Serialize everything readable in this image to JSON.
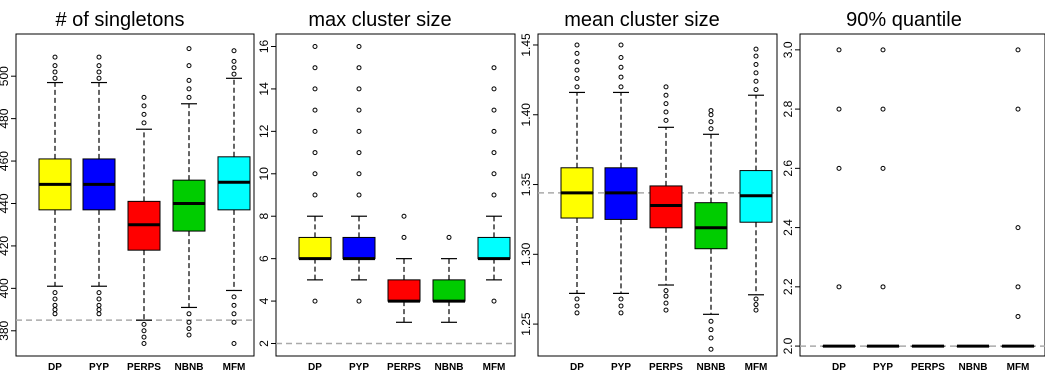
{
  "chart_data": [
    {
      "type": "boxplot",
      "title": "# of singletons",
      "categories": [
        "DP",
        "PYP",
        "PERPS",
        "NBNB",
        "MFM"
      ],
      "colors": [
        "#ffff00",
        "#0000ff",
        "#ff0000",
        "#00cc00",
        "#00ffff"
      ],
      "ylim": [
        370,
        518
      ],
      "yticks": [
        "380",
        "400",
        "420",
        "440",
        "460",
        "480",
        "500"
      ],
      "reference_line": 385,
      "boxes": [
        {
          "whisker_low": 401,
          "q1": 437,
          "median": 449,
          "q3": 461,
          "whisker_high": 497,
          "outliers": [
            398,
            395,
            392,
            390,
            388,
            499,
            502,
            505,
            509
          ]
        },
        {
          "whisker_low": 401,
          "q1": 437,
          "median": 449,
          "q3": 461,
          "whisker_high": 497,
          "outliers": [
            398,
            395,
            392,
            390,
            388,
            499,
            502,
            505,
            509
          ]
        },
        {
          "whisker_low": 385,
          "q1": 418,
          "median": 430,
          "q3": 441,
          "whisker_high": 475,
          "outliers": [
            383,
            380,
            377,
            374,
            478,
            482,
            486,
            490
          ]
        },
        {
          "whisker_low": 391,
          "q1": 427,
          "median": 440,
          "q3": 451,
          "whisker_high": 487,
          "outliers": [
            388,
            384,
            381,
            378,
            490,
            494,
            498,
            505,
            513
          ]
        },
        {
          "whisker_low": 399,
          "q1": 437,
          "median": 450,
          "q3": 462,
          "whisker_high": 499,
          "outliers": [
            396,
            392,
            388,
            384,
            374,
            501,
            504,
            507,
            512
          ]
        }
      ]
    },
    {
      "type": "boxplot",
      "title": "max cluster size",
      "categories": [
        "DP",
        "PYP",
        "PERPS",
        "NBNB",
        "MFM"
      ],
      "colors": [
        "#ffff00",
        "#0000ff",
        "#ff0000",
        "#00cc00",
        "#00ffff"
      ],
      "ylim": [
        1.6,
        16.4
      ],
      "yticks": [
        "2",
        "4",
        "6",
        "8",
        "10",
        "12",
        "14",
        "16"
      ],
      "reference_line": 2,
      "boxes": [
        {
          "whisker_low": 5,
          "q1": 6,
          "median": 6,
          "q3": 7,
          "whisker_high": 8,
          "outliers": [
            4,
            9,
            10,
            11,
            12,
            13,
            14,
            15,
            16
          ]
        },
        {
          "whisker_low": 5,
          "q1": 6,
          "median": 6,
          "q3": 7,
          "whisker_high": 8,
          "outliers": [
            4,
            9,
            10,
            11,
            12,
            13,
            14,
            15,
            16
          ]
        },
        {
          "whisker_low": 3,
          "q1": 4,
          "median": 4,
          "q3": 5,
          "whisker_high": 6,
          "outliers": [
            7,
            8
          ]
        },
        {
          "whisker_low": 3,
          "q1": 4,
          "median": 4,
          "q3": 5,
          "whisker_high": 6,
          "outliers": [
            7
          ]
        },
        {
          "whisker_low": 5,
          "q1": 6,
          "median": 6,
          "q3": 7,
          "whisker_high": 8,
          "outliers": [
            4,
            9,
            10,
            11,
            12,
            13,
            14,
            15
          ]
        }
      ]
    },
    {
      "type": "boxplot",
      "title": "mean cluster size",
      "categories": [
        "DP",
        "PYP",
        "PERPS",
        "NBNB",
        "MFM"
      ],
      "colors": [
        "#ffff00",
        "#0000ff",
        "#ff0000",
        "#00cc00",
        "#00ffff"
      ],
      "ylim": [
        1.23,
        1.455
      ],
      "yticks": [
        "1.25",
        "1.30",
        "1.35",
        "1.40",
        "1.45"
      ],
      "reference_line": 1.344,
      "boxes": [
        {
          "whisker_low": 1.272,
          "q1": 1.326,
          "median": 1.344,
          "q3": 1.362,
          "whisker_high": 1.416,
          "outliers": [
            1.258,
            1.263,
            1.268,
            1.42,
            1.426,
            1.432,
            1.438,
            1.444,
            1.45
          ]
        },
        {
          "whisker_low": 1.272,
          "q1": 1.325,
          "median": 1.344,
          "q3": 1.362,
          "whisker_high": 1.416,
          "outliers": [
            1.258,
            1.263,
            1.268,
            1.42,
            1.427,
            1.434,
            1.441,
            1.45
          ]
        },
        {
          "whisker_low": 1.278,
          "q1": 1.319,
          "median": 1.335,
          "q3": 1.349,
          "whisker_high": 1.391,
          "outliers": [
            1.26,
            1.265,
            1.27,
            1.274,
            1.396,
            1.402,
            1.408,
            1.414,
            1.42
          ]
        },
        {
          "whisker_low": 1.257,
          "q1": 1.304,
          "median": 1.319,
          "q3": 1.337,
          "whisker_high": 1.386,
          "outliers": [
            1.232,
            1.24,
            1.246,
            1.252,
            1.39,
            1.395,
            1.4,
            1.403
          ]
        },
        {
          "whisker_low": 1.271,
          "q1": 1.323,
          "median": 1.342,
          "q3": 1.36,
          "whisker_high": 1.414,
          "outliers": [
            1.26,
            1.264,
            1.268,
            1.418,
            1.424,
            1.43,
            1.436,
            1.442,
            1.447
          ]
        }
      ]
    },
    {
      "type": "boxplot",
      "title": "90% quantile",
      "categories": [
        "DP",
        "PYP",
        "PERPS",
        "NBNB",
        "MFM"
      ],
      "colors": [
        "#ffff00",
        "#0000ff",
        "#ff0000",
        "#00cc00",
        "#00ffff"
      ],
      "ylim": [
        1.98,
        3.04
      ],
      "yticks": [
        "2.0",
        "2.2",
        "2.4",
        "2.6",
        "2.8",
        "3.0"
      ],
      "reference_line": 2.0,
      "boxes": [
        {
          "whisker_low": 2.0,
          "q1": 2.0,
          "median": 2.0,
          "q3": 2.0,
          "whisker_high": 2.0,
          "outliers": [
            2.2,
            2.6,
            2.8,
            3.0
          ]
        },
        {
          "whisker_low": 2.0,
          "q1": 2.0,
          "median": 2.0,
          "q3": 2.0,
          "whisker_high": 2.0,
          "outliers": [
            2.2,
            2.6,
            2.8,
            3.0
          ]
        },
        {
          "whisker_low": 2.0,
          "q1": 2.0,
          "median": 2.0,
          "q3": 2.0,
          "whisker_high": 2.0,
          "outliers": []
        },
        {
          "whisker_low": 2.0,
          "q1": 2.0,
          "median": 2.0,
          "q3": 2.0,
          "whisker_high": 2.0,
          "outliers": []
        },
        {
          "whisker_low": 2.0,
          "q1": 2.0,
          "median": 2.0,
          "q3": 2.0,
          "whisker_high": 2.0,
          "outliers": [
            2.1,
            2.2,
            2.4,
            2.8,
            3.0
          ]
        }
      ]
    }
  ]
}
